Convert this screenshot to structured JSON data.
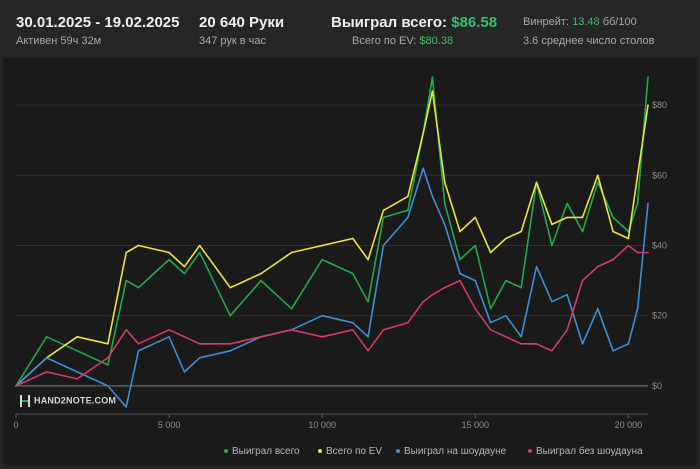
{
  "header": {
    "date_range": "30.01.2025 - 19.02.2025",
    "active_time": "Активен 59ч 32м",
    "hands": "20 640 Руки",
    "hands_per_hour": "347 рук в час",
    "won_total_label": "Выиграл всего:",
    "won_total_value": "$86.58",
    "ev_total_label": "Всего по EV:",
    "ev_total_value": "$80.38",
    "winrate_label": "Винрейт:",
    "winrate_value": "13.48",
    "winrate_unit": "бб/100",
    "avg_tables": "3.6 среднее число столов"
  },
  "logo": {
    "text": "HAND2NOTE.COM"
  },
  "colors": {
    "background": "#262626",
    "chart_background": "#1a1a1a",
    "won_total": "#21a84f",
    "ev_total": "#e8e63c",
    "showdown": "#3e8ed6",
    "no_showdown": "#d13a6a",
    "accent_green": "#3dbd6b"
  },
  "chart_data": {
    "type": "line",
    "xlim": [
      0,
      20640
    ],
    "ylim": [
      -8,
      90
    ],
    "x_ticks": [
      0,
      5000,
      10000,
      15000,
      20000
    ],
    "x_tick_labels": [
      "0",
      "5 000",
      "10 000",
      "15 000",
      "20 000"
    ],
    "y_ticks": [
      0,
      20,
      40,
      60,
      80
    ],
    "y_tick_labels": [
      "$0",
      "$20",
      "$40",
      "$60",
      "$80"
    ],
    "x": [
      0,
      1000,
      2000,
      3000,
      3600,
      4000,
      5000,
      5500,
      6000,
      7000,
      8000,
      9000,
      10000,
      11000,
      11500,
      12000,
      12800,
      13300,
      13600,
      14000,
      14500,
      15000,
      15500,
      16000,
      16500,
      17000,
      17500,
      18000,
      18500,
      19000,
      19500,
      20000,
      20300,
      20640
    ],
    "series": [
      {
        "name": "Выиграл всего",
        "color": "#21a84f",
        "values": [
          0,
          14,
          10,
          6,
          30,
          28,
          36,
          32,
          38,
          20,
          30,
          22,
          36,
          32,
          24,
          48,
          50,
          72,
          88,
          52,
          36,
          40,
          22,
          30,
          28,
          58,
          40,
          52,
          44,
          58,
          48,
          44,
          52,
          88
        ]
      },
      {
        "name": "Всего по EV",
        "color": "#e8e63c",
        "values": [
          0,
          8,
          14,
          12,
          38,
          40,
          38,
          34,
          40,
          28,
          32,
          38,
          40,
          42,
          36,
          50,
          54,
          72,
          84,
          58,
          44,
          48,
          38,
          42,
          44,
          58,
          46,
          48,
          48,
          60,
          44,
          42,
          60,
          80
        ]
      },
      {
        "name": "Выиграл на шоудауне",
        "color": "#3e8ed6",
        "values": [
          0,
          8,
          4,
          0,
          -6,
          10,
          14,
          4,
          8,
          10,
          14,
          16,
          20,
          18,
          14,
          40,
          48,
          62,
          54,
          46,
          32,
          30,
          18,
          20,
          14,
          34,
          24,
          26,
          12,
          22,
          10,
          12,
          22,
          52
        ]
      },
      {
        "name": "Выиграл без шоудауна",
        "color": "#d13a6a",
        "values": [
          0,
          4,
          2,
          8,
          16,
          12,
          16,
          14,
          12,
          12,
          14,
          16,
          14,
          16,
          10,
          16,
          18,
          24,
          26,
          28,
          30,
          22,
          16,
          14,
          12,
          12,
          10,
          16,
          30,
          34,
          36,
          40,
          38,
          38
        ]
      }
    ]
  }
}
